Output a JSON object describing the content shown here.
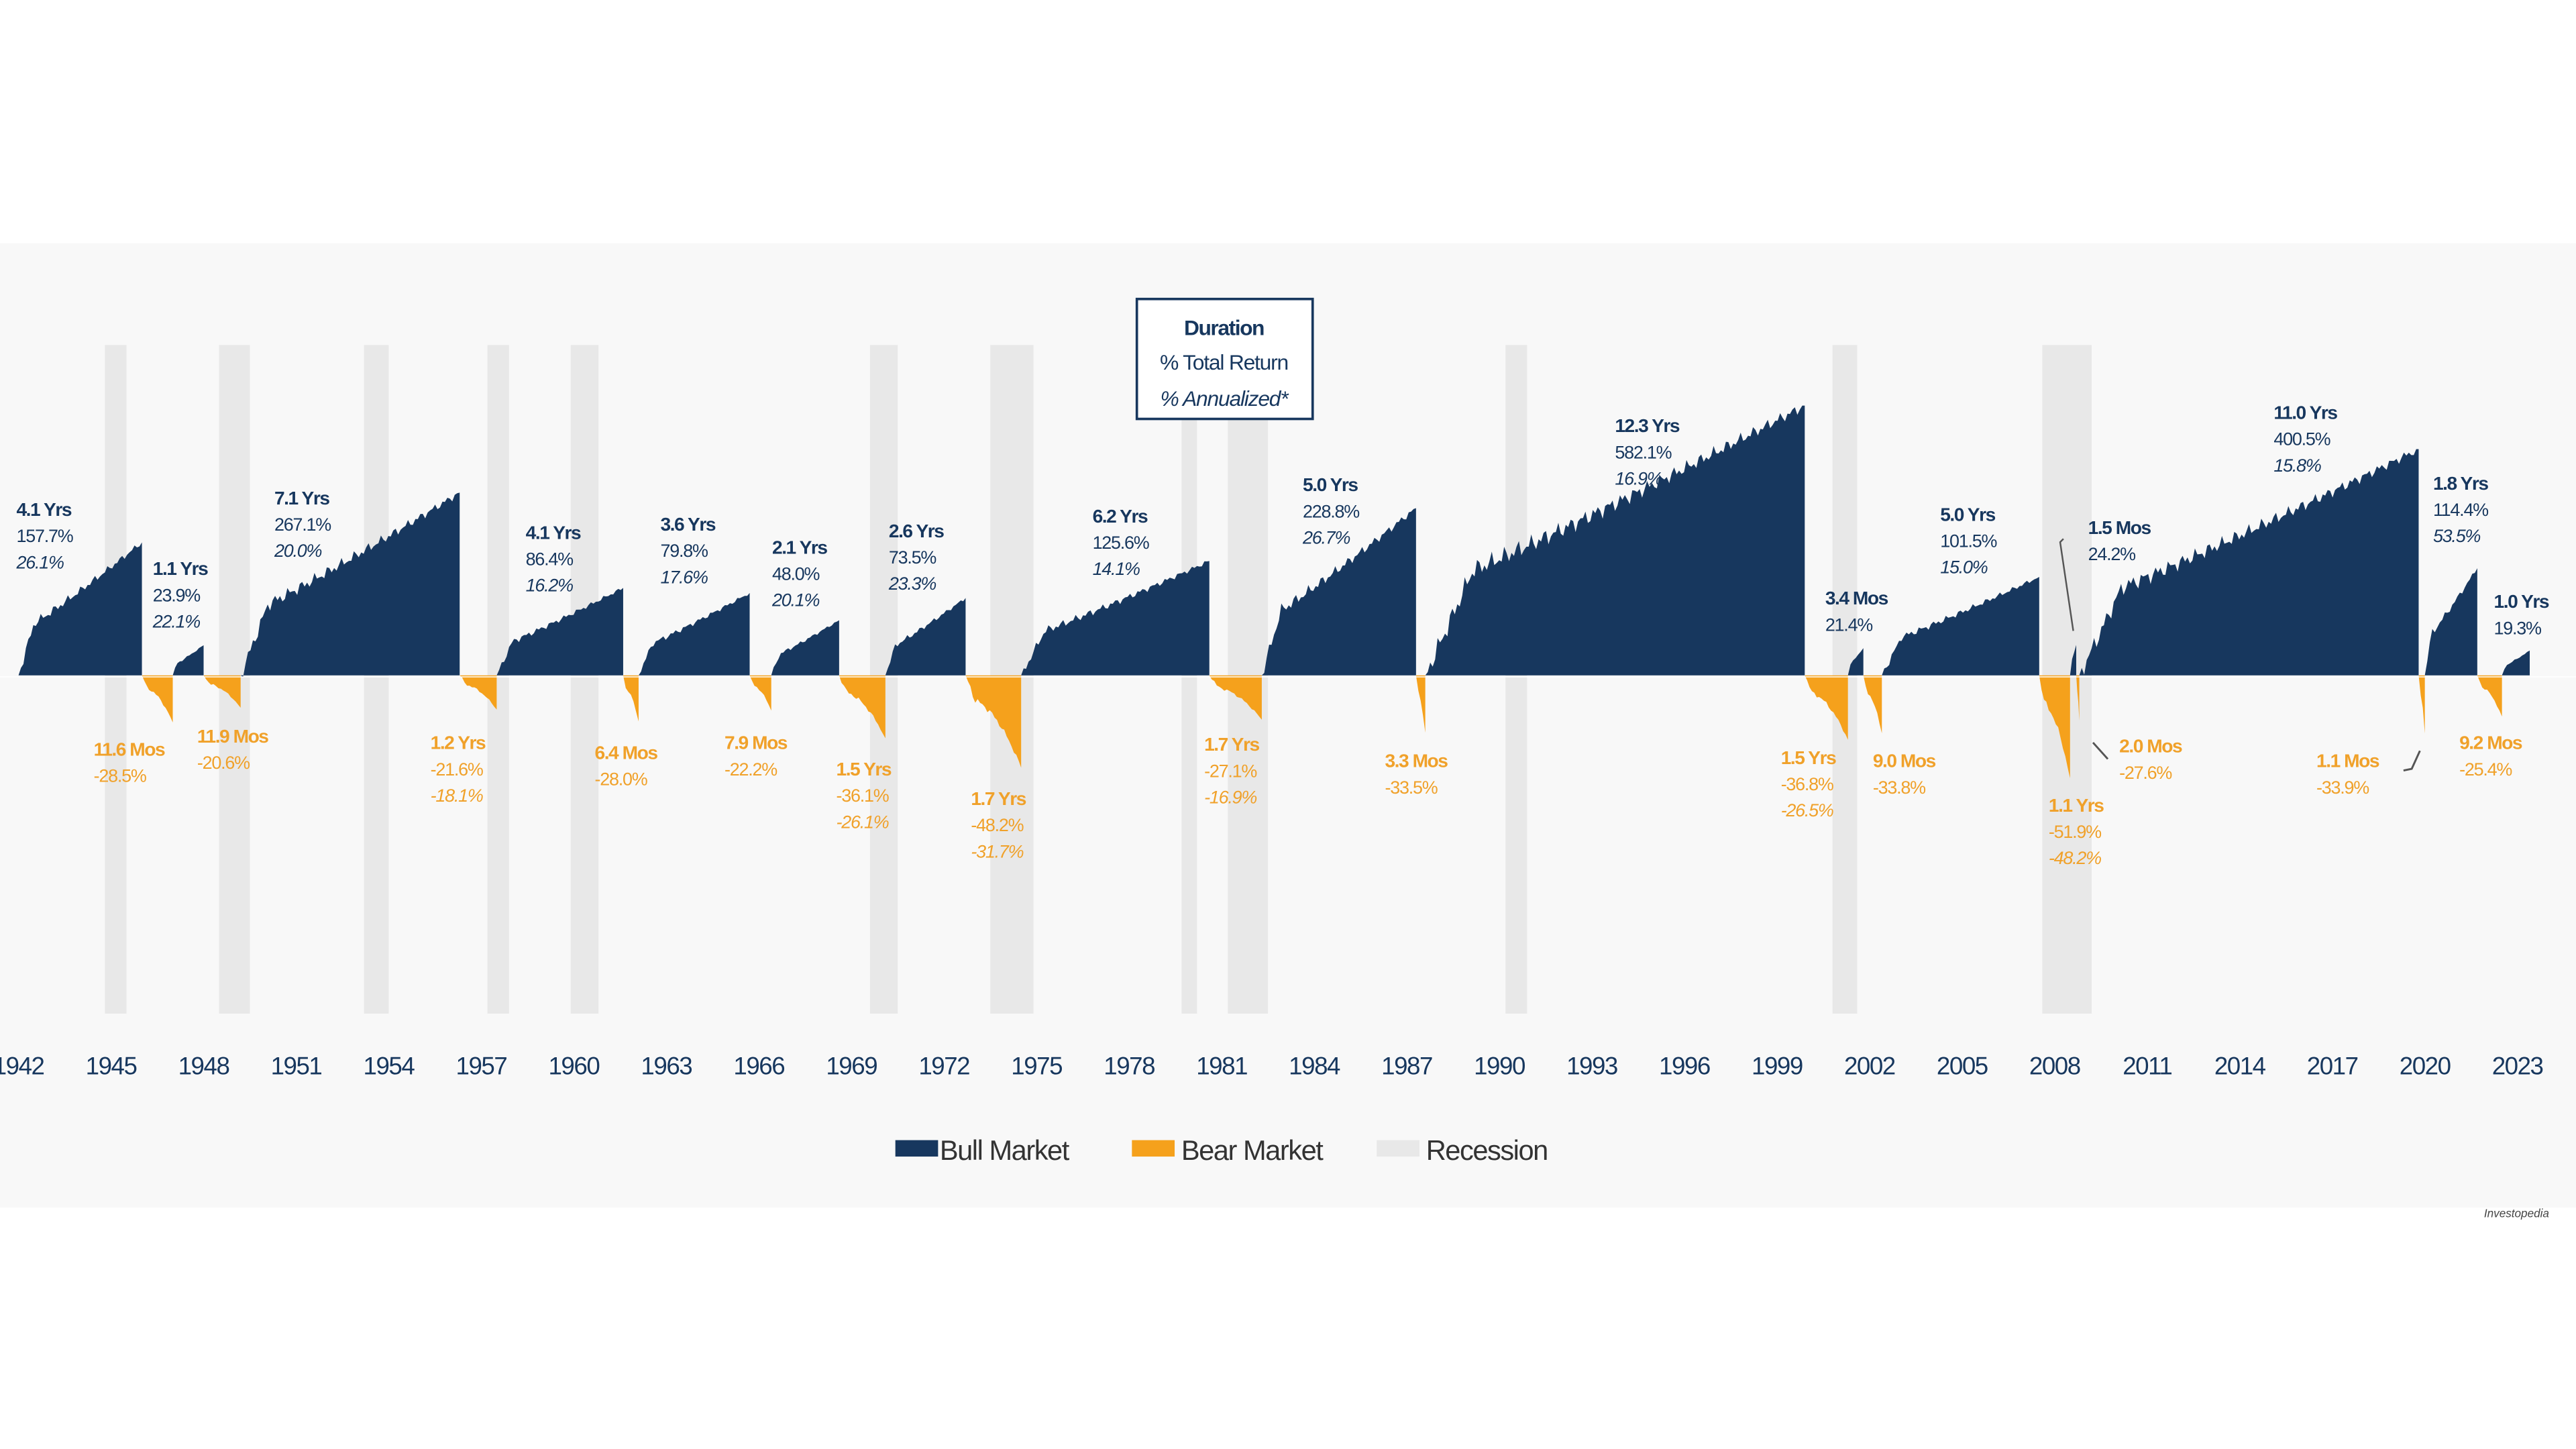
{
  "chart_data": {
    "type": "area",
    "log_scale": true,
    "xlim": [
      1941.4,
      2024.9
    ],
    "ylim": [
      -91,
      950
    ],
    "xticks": [
      1942,
      1945,
      1948,
      1951,
      1954,
      1957,
      1960,
      1963,
      1966,
      1969,
      1972,
      1975,
      1978,
      1981,
      1984,
      1987,
      1990,
      1993,
      1996,
      1999,
      2002,
      2005,
      2008,
      2011,
      2014,
      2017,
      2020,
      2023
    ],
    "key": [
      "Duration",
      "% Total Return",
      "% Annualized*"
    ],
    "source": "Investopedia",
    "series": [
      {
        "name": "Bull Market",
        "color": "#17375e",
        "start": [
          1942.0,
          1947.0,
          1949.2,
          1957.5,
          1962.1,
          1966.4,
          1970.1,
          1974.5,
          1982.3,
          1987.6,
          2001.3,
          2002.4,
          2008.5,
          2008.8,
          2020.0,
          2022.5
        ],
        "end": [
          1946.0,
          1948.0,
          1956.3,
          1961.6,
          1965.7,
          1968.6,
          1972.7,
          1980.6,
          1987.3,
          1999.9,
          2001.8,
          2007.5,
          2008.7,
          2019.8,
          2021.7,
          2023.4
        ],
        "durations": [
          "4.1 Yrs",
          "1.1 Yrs",
          "7.1 Yrs",
          "4.1 Yrs",
          "3.6 Yrs",
          "2.1 Yrs",
          "2.6 Yrs",
          "6.2 Yrs",
          "5.0 Yrs",
          "12.3 Yrs",
          "3.4 Mos",
          "5.0 Yrs",
          "1.5 Mos",
          "11.0 Yrs",
          "1.8 Yrs",
          "1.0 Yrs"
        ],
        "values": [
          157.7,
          23.9,
          267.1,
          86.4,
          79.8,
          48.0,
          73.5,
          125.6,
          228.8,
          582.1,
          21.4,
          101.5,
          24.2,
          400.5,
          114.4,
          19.3
        ],
        "value_labels": [
          "157.7%",
          "23.9%",
          "267.1%",
          "86.4%",
          "79.8%",
          "48.0%",
          "73.5%",
          "125.6%",
          "228.8%",
          "582.1%",
          "21.4%",
          "101.5%",
          "24.2%",
          "400.5%",
          "114.4%",
          "19.3%"
        ],
        "annualized": [
          26.1,
          22.1,
          20.0,
          16.2,
          17.6,
          20.1,
          23.3,
          14.1,
          26.7,
          16.9,
          null,
          15.0,
          null,
          15.8,
          53.5,
          null
        ],
        "annualized_labels": [
          "26.1%",
          "22.1%",
          "20.0%",
          "16.2%",
          "17.6%",
          "20.1%",
          "23.3%",
          "14.1%",
          "26.7%",
          "16.9%",
          null,
          "15.0%",
          null,
          "15.8%",
          "53.5%",
          null
        ]
      },
      {
        "name": "Bear Market",
        "color": "#f5a11c",
        "start": [
          1946.0,
          1948.0,
          1956.3,
          1961.6,
          1965.7,
          1968.6,
          1972.7,
          1980.6,
          1987.3,
          1999.9,
          2001.8,
          2007.5,
          2008.7,
          2019.8,
          2021.7
        ],
        "end": [
          1947.0,
          1949.2,
          1957.5,
          1962.1,
          1966.4,
          1970.1,
          1974.5,
          1982.3,
          1987.6,
          2001.3,
          2002.4,
          2008.5,
          2008.8,
          2020.0,
          2022.5
        ],
        "durations": [
          "11.6 Mos",
          "11.9 Mos",
          "1.2 Yrs",
          "6.4 Mos",
          "7.9 Mos",
          "1.5 Yrs",
          "1.7 Yrs",
          "1.7 Yrs",
          "3.3 Mos",
          "1.5 Yrs",
          "9.0 Mos",
          "1.1 Yrs",
          "2.0 Mos",
          "1.1 Mos",
          "9.2 Mos"
        ],
        "values": [
          -28.5,
          -20.6,
          -21.6,
          -28.0,
          -22.2,
          -36.1,
          -48.2,
          -27.1,
          -33.5,
          -36.8,
          -33.8,
          -51.9,
          -27.6,
          -33.9,
          -25.4
        ],
        "value_labels": [
          "-28.5%",
          "-20.6%",
          "-21.6%",
          "-28.0%",
          "-22.2%",
          "-36.1%",
          "-48.2%",
          "-27.1%",
          "-33.5%",
          "-36.8%",
          "-33.8%",
          "-51.9%",
          "-27.6%",
          "-33.9%",
          "-25.4%"
        ],
        "annualized": [
          null,
          null,
          -18.1,
          null,
          null,
          -26.1,
          -31.7,
          -16.9,
          null,
          -26.5,
          null,
          -48.2,
          null,
          null,
          null
        ],
        "annualized_labels": [
          null,
          null,
          "-18.1%",
          null,
          null,
          "-26.1%",
          "-31.7%",
          "-16.9%",
          null,
          "-26.5%",
          null,
          "-48.2%",
          null,
          null,
          null
        ]
      },
      {
        "name": "Recession",
        "color": "#e8e8e8",
        "start": [
          1944.8,
          1948.5,
          1953.2,
          1957.2,
          1959.9,
          1969.6,
          1973.5,
          1979.7,
          1981.2,
          1990.2,
          2000.8,
          2007.6
        ],
        "end": [
          1945.5,
          1949.5,
          1954.0,
          1957.9,
          1960.8,
          1970.5,
          1974.9,
          1980.2,
          1982.5,
          1990.9,
          2001.6,
          2009.2
        ]
      }
    ]
  }
}
